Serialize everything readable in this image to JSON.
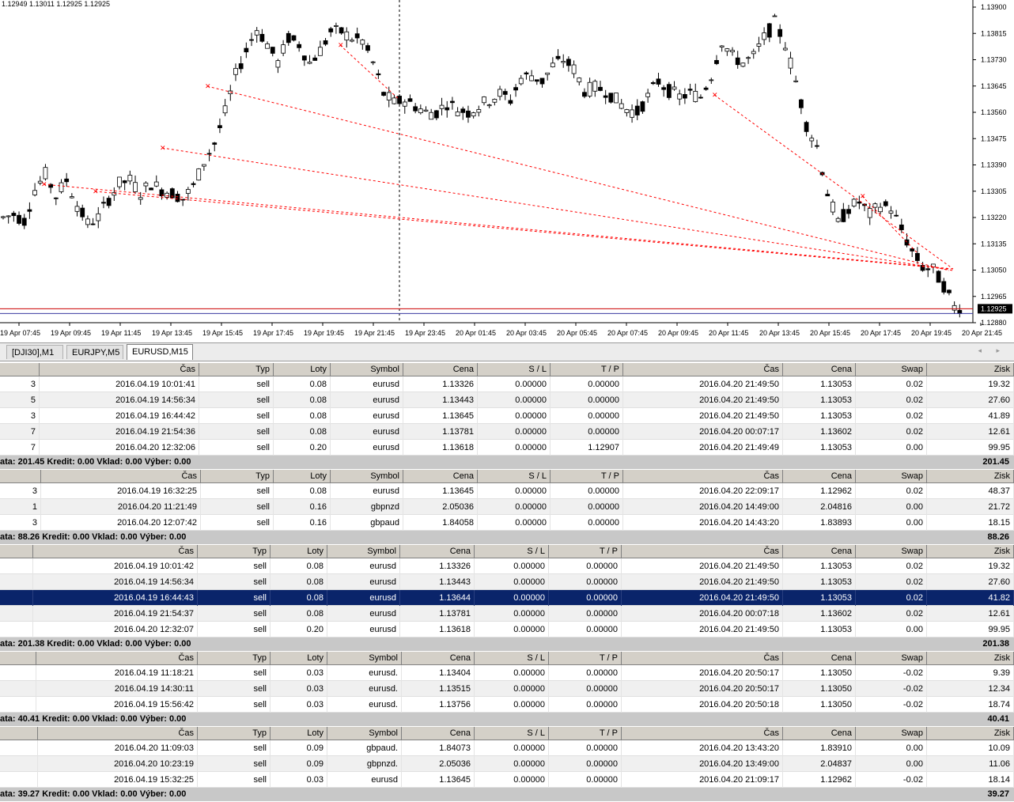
{
  "chart": {
    "ohlc": "1.12949 1.13011 1.12925 1.12925",
    "price_labels": [
      "1.13900",
      "1.13815",
      "1.13730",
      "1.13645",
      "1.13560",
      "1.13475",
      "1.13390",
      "1.13305",
      "1.13220",
      "1.13135",
      "1.13050",
      "1.12965",
      "1.12880"
    ],
    "current_price": "1.12925",
    "time_labels": [
      "19 Apr 07:45",
      "19 Apr 09:45",
      "19 Apr 11:45",
      "19 Apr 13:45",
      "19 Apr 15:45",
      "19 Apr 17:45",
      "19 Apr 19:45",
      "19 Apr 21:45",
      "19 Apr 23:45",
      "20 Apr 01:45",
      "20 Apr 03:45",
      "20 Apr 05:45",
      "20 Apr 07:45",
      "20 Apr 09:45",
      "20 Apr 11:45",
      "20 Apr 13:45",
      "20 Apr 15:45",
      "20 Apr 17:45",
      "20 Apr 19:45",
      "20 Apr 21:45"
    ],
    "bid_line_color": "#cc0000",
    "trade_line_color": "#ff0000",
    "price_path": [
      1.1322,
      1.1323,
      1.1321,
      1.1331,
      1.1336,
      1.1329,
      1.1334,
      1.1326,
      1.132,
      1.1322,
      1.1328,
      1.1333,
      1.1334,
      1.133,
      1.1333,
      1.1331,
      1.133,
      1.1328,
      1.1332,
      1.134,
      1.1346,
      1.1356,
      1.1368,
      1.1376,
      1.1383,
      1.1378,
      1.1372,
      1.138,
      1.1378,
      1.1372,
      1.1376,
      1.1382,
      1.1382,
      1.138,
      1.1379,
      1.1372,
      1.1362,
      1.1359,
      1.136,
      1.1358,
      1.1356,
      1.1356,
      1.1359,
      1.1357,
      1.1356,
      1.1358,
      1.136,
      1.1362,
      1.136,
      1.1367,
      1.1368,
      1.1366,
      1.1371,
      1.1373,
      1.137,
      1.1363,
      1.1364,
      1.1363,
      1.136,
      1.1357,
      1.1356,
      1.1361,
      1.1366,
      1.1363,
      1.1361,
      1.1362,
      1.1361,
      1.1368,
      1.1379,
      1.1374,
      1.1372,
      1.1374,
      1.138,
      1.1385,
      1.1378,
      1.1366,
      1.1352,
      1.1345,
      1.133,
      1.132,
      1.1325,
      1.1327,
      1.1323,
      1.1326,
      1.1325,
      1.1318,
      1.1311,
      1.1306,
      1.1305,
      1.13,
      1.1293
    ]
  },
  "tabs": {
    "items": [
      "[DJI30],M1",
      "EURJPY,M5",
      "EURUSD,M15"
    ],
    "arrows": "◂ ▸"
  },
  "headers": [
    "Čas",
    "Typ",
    "Loty",
    "Symbol",
    "Cena",
    "S / L",
    "T / P",
    "Čas",
    "Cena",
    "Swap",
    "Zisk"
  ],
  "groups": [
    {
      "rows": [
        {
          "lead": "3",
          "c": [
            "2016.04.19 10:01:41",
            "sell",
            "0.08",
            "eurusd",
            "1.13326",
            "0.00000",
            "0.00000",
            "2016.04.20 21:49:50",
            "1.13053",
            "0.02",
            "19.32"
          ]
        },
        {
          "lead": "5",
          "c": [
            "2016.04.19 14:56:34",
            "sell",
            "0.08",
            "eurusd",
            "1.13443",
            "0.00000",
            "0.00000",
            "2016.04.20 21:49:50",
            "1.13053",
            "0.02",
            "27.60"
          ]
        },
        {
          "lead": "3",
          "c": [
            "2016.04.19 16:44:42",
            "sell",
            "0.08",
            "eurusd",
            "1.13645",
            "0.00000",
            "0.00000",
            "2016.04.20 21:49:50",
            "1.13053",
            "0.02",
            "41.89"
          ]
        },
        {
          "lead": "7",
          "c": [
            "2016.04.19 21:54:36",
            "sell",
            "0.08",
            "eurusd",
            "1.13781",
            "0.00000",
            "0.00000",
            "2016.04.20 00:07:17",
            "1.13602",
            "0.02",
            "12.61"
          ]
        },
        {
          "lead": "7",
          "c": [
            "2016.04.20 12:32:06",
            "sell",
            "0.20",
            "eurusd",
            "1.13618",
            "0.00000",
            "1.12907",
            "2016.04.20 21:49:49",
            "1.13053",
            "0.00",
            "99.95"
          ]
        }
      ],
      "summary": "ata: 201.45  Kredit: 0.00  Vklad: 0.00  Výber: 0.00",
      "total": "201.45"
    },
    {
      "rows": [
        {
          "lead": "3",
          "c": [
            "2016.04.19 16:32:25",
            "sell",
            "0.08",
            "eurusd",
            "1.13645",
            "0.00000",
            "0.00000",
            "2016.04.20 22:09:17",
            "1.12962",
            "0.02",
            "48.37"
          ]
        },
        {
          "lead": "1",
          "c": [
            "2016.04.20 11:21:49",
            "sell",
            "0.16",
            "gbpnzd",
            "2.05036",
            "0.00000",
            "0.00000",
            "2016.04.20 14:49:00",
            "2.04816",
            "0.00",
            "21.72"
          ]
        },
        {
          "lead": "3",
          "c": [
            "2016.04.20 12:07:42",
            "sell",
            "0.16",
            "gbpaud",
            "1.84058",
            "0.00000",
            "0.00000",
            "2016.04.20 14:43:20",
            "1.83893",
            "0.00",
            "18.15"
          ]
        }
      ],
      "summary": "ata: 88.26  Kredit: 0.00  Vklad: 0.00  Výber: 0.00",
      "total": "88.26"
    },
    {
      "rows": [
        {
          "lead": "",
          "c": [
            "2016.04.19 10:01:42",
            "sell",
            "0.08",
            "eurusd",
            "1.13326",
            "0.00000",
            "0.00000",
            "2016.04.20 21:49:50",
            "1.13053",
            "0.02",
            "19.32"
          ]
        },
        {
          "lead": "",
          "c": [
            "2016.04.19 14:56:34",
            "sell",
            "0.08",
            "eurusd",
            "1.13443",
            "0.00000",
            "0.00000",
            "2016.04.20 21:49:50",
            "1.13053",
            "0.02",
            "27.60"
          ]
        },
        {
          "lead": "",
          "c": [
            "2016.04.19 16:44:43",
            "sell",
            "0.08",
            "eurusd",
            "1.13644",
            "0.00000",
            "0.00000",
            "2016.04.20 21:49:50",
            "1.13053",
            "0.02",
            "41.82"
          ]
        },
        {
          "lead": "",
          "c": [
            "2016.04.19 21:54:37",
            "sell",
            "0.08",
            "eurusd",
            "1.13781",
            "0.00000",
            "0.00000",
            "2016.04.20 00:07:18",
            "1.13602",
            "0.02",
            "12.61"
          ]
        },
        {
          "lead": "",
          "c": [
            "2016.04.20 12:32:07",
            "sell",
            "0.20",
            "eurusd",
            "1.13618",
            "0.00000",
            "0.00000",
            "2016.04.20 21:49:50",
            "1.13053",
            "0.00",
            "99.95"
          ]
        }
      ],
      "summary": "ata: 201.38  Kredit: 0.00  Vklad: 0.00  Výber: 0.00",
      "total": "201.38"
    },
    {
      "rows": [
        {
          "lead": "",
          "c": [
            "2016.04.19 11:18:21",
            "sell",
            "0.03",
            "eurusd.",
            "1.13404",
            "0.00000",
            "0.00000",
            "2016.04.20 20:50:17",
            "1.13050",
            "-0.02",
            "9.39"
          ]
        },
        {
          "lead": "",
          "c": [
            "2016.04.19 14:30:11",
            "sell",
            "0.03",
            "eurusd.",
            "1.13515",
            "0.00000",
            "0.00000",
            "2016.04.20 20:50:17",
            "1.13050",
            "-0.02",
            "12.34"
          ]
        },
        {
          "lead": "",
          "c": [
            "2016.04.19 15:56:42",
            "sell",
            "0.03",
            "eurusd.",
            "1.13756",
            "0.00000",
            "0.00000",
            "2016.04.20 20:50:18",
            "1.13050",
            "-0.02",
            "18.74"
          ]
        }
      ],
      "summary": "ata: 40.41  Kredit: 0.00  Vklad: 0.00  Výber: 0.00",
      "total": "40.41"
    },
    {
      "rows": [
        {
          "lead": "",
          "c": [
            "2016.04.20 11:09:03",
            "sell",
            "0.09",
            "gbpaud.",
            "1.84073",
            "0.00000",
            "0.00000",
            "2016.04.20 13:43:20",
            "1.83910",
            "0.00",
            "10.09"
          ]
        },
        {
          "lead": "",
          "c": [
            "2016.04.20 10:23:19",
            "sell",
            "0.09",
            "gbpnzd.",
            "2.05036",
            "0.00000",
            "0.00000",
            "2016.04.20 13:49:00",
            "2.04837",
            "0.00",
            "11.06"
          ]
        },
        {
          "lead": "",
          "c": [
            "2016.04.19 15:32:25",
            "sell",
            "0.03",
            "eurusd",
            "1.13645",
            "0.00000",
            "0.00000",
            "2016.04.20 21:09:17",
            "1.12962",
            "-0.02",
            "18.14"
          ]
        }
      ],
      "summary": "ata: 39.27  Kredit: 0.00  Vklad: 0.00  Výber: 0.00",
      "total": "39.27"
    }
  ]
}
